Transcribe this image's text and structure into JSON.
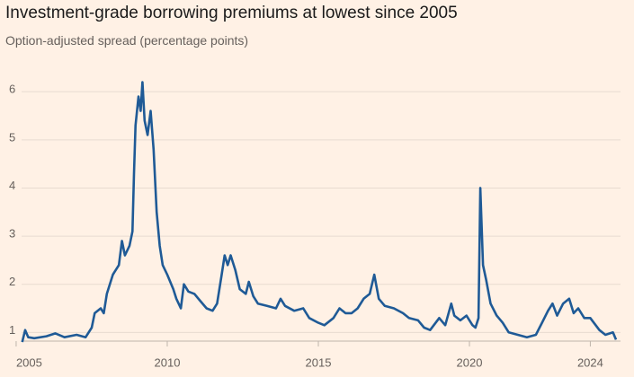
{
  "chart_data": {
    "type": "line",
    "title": "Investment-grade borrowing premiums at lowest since 2005",
    "subtitle": "Option-adjusted spread (percentage points)",
    "x": [
      2005.2,
      2005.3,
      2005.4,
      2005.6,
      2006.0,
      2006.3,
      2006.6,
      2007.0,
      2007.3,
      2007.5,
      2007.6,
      2007.8,
      2007.9,
      2008.0,
      2008.2,
      2008.4,
      2008.5,
      2008.6,
      2008.75,
      2008.85,
      2008.9,
      2008.95,
      2009.05,
      2009.12,
      2009.18,
      2009.25,
      2009.35,
      2009.45,
      2009.55,
      2009.65,
      2009.75,
      2009.85,
      2010.0,
      2010.2,
      2010.3,
      2010.45,
      2010.55,
      2010.7,
      2010.9,
      2011.1,
      2011.3,
      2011.5,
      2011.65,
      2011.8,
      2011.9,
      2012.0,
      2012.1,
      2012.25,
      2012.4,
      2012.6,
      2012.7,
      2012.85,
      2013.0,
      2013.3,
      2013.6,
      2013.75,
      2013.9,
      2014.2,
      2014.5,
      2014.7,
      2015.0,
      2015.2,
      2015.5,
      2015.7,
      2015.9,
      2016.1,
      2016.3,
      2016.5,
      2016.7,
      2016.85,
      2017.0,
      2017.2,
      2017.5,
      2017.8,
      2018.0,
      2018.3,
      2018.5,
      2018.7,
      2019.0,
      2019.2,
      2019.4,
      2019.5,
      2019.7,
      2019.9,
      2020.1,
      2020.2,
      2020.3,
      2020.36,
      2020.45,
      2020.55,
      2020.7,
      2020.9,
      2021.1,
      2021.3,
      2021.6,
      2021.9,
      2022.2,
      2022.4,
      2022.6,
      2022.75,
      2022.9,
      2023.1,
      2023.3,
      2023.45,
      2023.6,
      2023.8,
      2024.0,
      2024.3,
      2024.5,
      2024.75,
      2024.85
    ],
    "series": [
      {
        "name": "Option-adjusted spread",
        "color": "#1f5a96",
        "values": [
          0.8,
          1.05,
          0.9,
          0.88,
          0.92,
          0.98,
          0.9,
          0.95,
          0.9,
          1.1,
          1.4,
          1.5,
          1.4,
          1.8,
          2.2,
          2.4,
          2.9,
          2.6,
          2.8,
          3.1,
          4.3,
          5.3,
          5.9,
          5.6,
          6.2,
          5.4,
          5.1,
          5.6,
          4.8,
          3.5,
          2.8,
          2.4,
          2.2,
          1.9,
          1.7,
          1.5,
          2.0,
          1.85,
          1.8,
          1.65,
          1.5,
          1.45,
          1.6,
          2.2,
          2.6,
          2.4,
          2.6,
          2.3,
          1.9,
          1.8,
          2.05,
          1.75,
          1.6,
          1.55,
          1.5,
          1.7,
          1.55,
          1.45,
          1.5,
          1.3,
          1.2,
          1.15,
          1.3,
          1.5,
          1.4,
          1.4,
          1.5,
          1.7,
          1.8,
          2.2,
          1.7,
          1.55,
          1.5,
          1.4,
          1.3,
          1.25,
          1.1,
          1.05,
          1.3,
          1.15,
          1.6,
          1.35,
          1.25,
          1.35,
          1.15,
          1.1,
          1.3,
          4.0,
          2.4,
          2.1,
          1.6,
          1.35,
          1.2,
          1.0,
          0.95,
          0.9,
          0.95,
          1.2,
          1.45,
          1.6,
          1.35,
          1.6,
          1.7,
          1.4,
          1.5,
          1.3,
          1.3,
          1.05,
          0.95,
          1.0,
          0.85
        ]
      }
    ],
    "xlim": [
      2005.18,
      2024.88
    ],
    "xticks": [
      2005,
      2010,
      2015,
      2020,
      2024
    ],
    "ylim": [
      0.82,
      6.6
    ],
    "yticks": [
      1,
      2,
      3,
      4,
      5,
      6
    ],
    "grid": true
  }
}
